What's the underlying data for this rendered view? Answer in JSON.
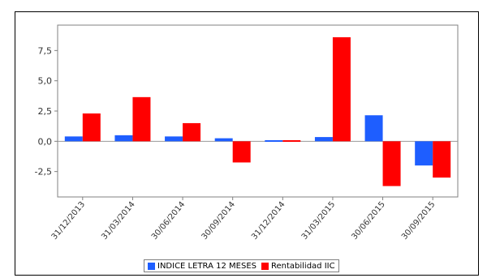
{
  "chart_data": {
    "type": "bar",
    "categories": [
      "31/12/2013",
      "31/03/2014",
      "30/06/2014",
      "30/09/2014",
      "31/12/2014",
      "31/03/2015",
      "30/06/2015",
      "30/09/2015"
    ],
    "series": [
      {
        "name": "INDICE LETRA 12 MESES",
        "color": "#1e5eff",
        "values": [
          0.4,
          0.5,
          0.4,
          0.25,
          0.05,
          0.35,
          2.15,
          -2.0
        ]
      },
      {
        "name": "Rentabilidad IIC",
        "color": "#ff0000",
        "values": [
          2.3,
          3.65,
          1.5,
          -1.75,
          0.05,
          8.6,
          -3.7,
          -3.0
        ]
      }
    ],
    "yticks": [
      "7,5",
      "5,0",
      "2,5",
      "0,0",
      "-2,5"
    ],
    "ylim": [
      -4.6,
      9.6
    ],
    "legend": "bottom",
    "grid": false,
    "xlabel": "",
    "ylabel": "",
    "title": ""
  }
}
